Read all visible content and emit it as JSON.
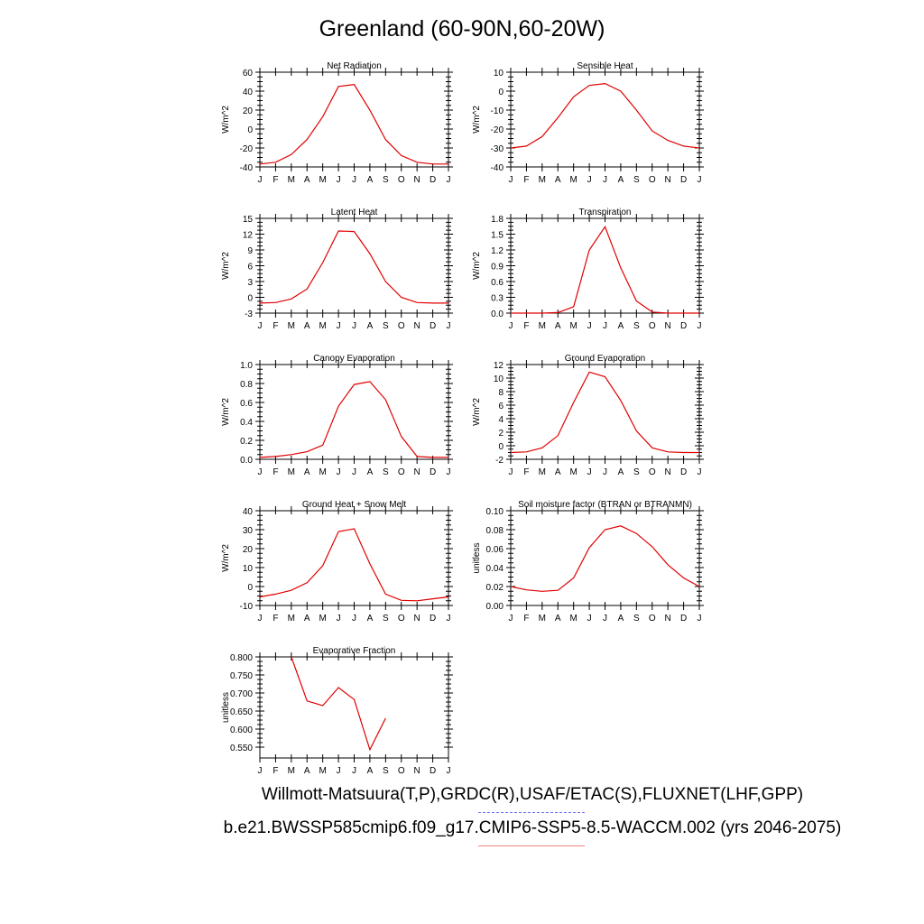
{
  "page": {
    "title": "Greenland (60-90N,60-20W)",
    "obs_legend": "Willmott-Matsuura(T,P),GRDC(R),USAF/ETAC(S),FLUXNET(LHF,GPP)",
    "model_legend": "b.e21.BWSSP585cmip6.f09_g17.CMIP6-SSP5-8.5-WACCM.002 (yrs 2046-2075)",
    "obs_color": "#6a6af0",
    "model_color": "#f08080",
    "line_color": "#e00000"
  },
  "chart_data": [
    {
      "type": "line",
      "title": "Net Radiation",
      "ylabel": "W/m^2",
      "x": [
        "J",
        "F",
        "M",
        "A",
        "M",
        "J",
        "J",
        "A",
        "S",
        "O",
        "N",
        "D",
        "J"
      ],
      "ylim": [
        -40,
        60
      ],
      "yticks": [
        "-40",
        "-20",
        "0",
        "20",
        "40",
        "60"
      ],
      "series": [
        {
          "values": [
            -37,
            -35,
            -27,
            -11,
            13,
            45,
            47,
            20,
            -11,
            -28,
            -35,
            -37,
            -37
          ]
        }
      ]
    },
    {
      "type": "line",
      "title": "Sensible Heat",
      "ylabel": "W/m^2",
      "x": [
        "J",
        "F",
        "M",
        "A",
        "M",
        "J",
        "J",
        "A",
        "S",
        "O",
        "N",
        "D",
        "J"
      ],
      "ylim": [
        -40,
        10
      ],
      "yticks": [
        "-40",
        "-30",
        "-20",
        "-10",
        "0",
        "10"
      ],
      "series": [
        {
          "values": [
            -30,
            -29,
            -24,
            -14,
            -3,
            3,
            4,
            0,
            -10,
            -21,
            -26,
            -29,
            -30
          ]
        }
      ]
    },
    {
      "type": "line",
      "title": "Latent Heat",
      "ylabel": "W/m^2",
      "x": [
        "J",
        "F",
        "M",
        "A",
        "M",
        "J",
        "J",
        "A",
        "S",
        "O",
        "N",
        "D",
        "J"
      ],
      "ylim": [
        -3,
        15
      ],
      "yticks": [
        "-3",
        "0",
        "3",
        "6",
        "9",
        "12",
        "15"
      ],
      "series": [
        {
          "values": [
            -1.1,
            -1.0,
            -0.3,
            1.6,
            6.6,
            12.6,
            12.5,
            8.3,
            3.0,
            0.0,
            -1.0,
            -1.1,
            -1.1
          ]
        }
      ]
    },
    {
      "type": "line",
      "title": "Transpiration",
      "ylabel": "W/m^2",
      "x": [
        "J",
        "F",
        "M",
        "A",
        "M",
        "J",
        "J",
        "A",
        "S",
        "O",
        "N",
        "D",
        "J"
      ],
      "ylim": [
        0,
        1.8
      ],
      "yticks": [
        "0.0",
        "0.3",
        "0.6",
        "0.9",
        "1.2",
        "1.5",
        "1.8"
      ],
      "series": [
        {
          "values": [
            0.0,
            0.0,
            0.0,
            0.01,
            0.12,
            1.2,
            1.64,
            0.86,
            0.23,
            0.02,
            0.0,
            0.0,
            0.0
          ]
        }
      ]
    },
    {
      "type": "line",
      "title": "Canopy Evaporation",
      "ylabel": "W/m^2",
      "x": [
        "J",
        "F",
        "M",
        "A",
        "M",
        "J",
        "J",
        "A",
        "S",
        "O",
        "N",
        "D",
        "J"
      ],
      "ylim": [
        0,
        1.0
      ],
      "yticks": [
        "0.0",
        "0.2",
        "0.4",
        "0.6",
        "0.8",
        "1.0"
      ],
      "series": [
        {
          "values": [
            0.02,
            0.03,
            0.05,
            0.08,
            0.15,
            0.56,
            0.79,
            0.82,
            0.63,
            0.24,
            0.03,
            0.02,
            0.02
          ]
        }
      ]
    },
    {
      "type": "line",
      "title": "Ground Evaporation",
      "ylabel": "W/m^2",
      "x": [
        "J",
        "F",
        "M",
        "A",
        "M",
        "J",
        "J",
        "A",
        "S",
        "O",
        "N",
        "D",
        "J"
      ],
      "ylim": [
        -2,
        12
      ],
      "yticks": [
        "-2",
        "0",
        "2",
        "4",
        "6",
        "8",
        "10",
        "12"
      ],
      "series": [
        {
          "values": [
            -1.0,
            -0.9,
            -0.3,
            1.5,
            6.4,
            10.9,
            10.2,
            6.7,
            2.2,
            -0.3,
            -0.9,
            -1.0,
            -1.0
          ]
        }
      ]
    },
    {
      "type": "line",
      "title": "Ground Heat + Snow Melt",
      "ylabel": "W/m^2",
      "x": [
        "J",
        "F",
        "M",
        "A",
        "M",
        "J",
        "J",
        "A",
        "S",
        "O",
        "N",
        "D",
        "J"
      ],
      "ylim": [
        -10,
        40
      ],
      "yticks": [
        "-10",
        "0",
        "10",
        "20",
        "30",
        "40"
      ],
      "series": [
        {
          "values": [
            -5.5,
            -4,
            -2,
            2,
            11,
            29,
            30.5,
            12,
            -4,
            -7.3,
            -7.5,
            -6.5,
            -5.5
          ]
        }
      ]
    },
    {
      "type": "line",
      "title": "Soil moisture factor (BTRAN or BTRANMN)",
      "ylabel": "unitless",
      "x": [
        "J",
        "F",
        "M",
        "A",
        "M",
        "J",
        "J",
        "A",
        "S",
        "O",
        "N",
        "D",
        "J"
      ],
      "ylim": [
        0,
        0.1
      ],
      "yticks": [
        "0.00",
        "0.02",
        "0.04",
        "0.06",
        "0.08",
        "0.10"
      ],
      "series": [
        {
          "values": [
            0.02,
            0.0165,
            0.015,
            0.016,
            0.029,
            0.061,
            0.08,
            0.084,
            0.076,
            0.062,
            0.043,
            0.029,
            0.02
          ]
        }
      ]
    },
    {
      "type": "line",
      "title": "Evaporative Fraction",
      "ylabel": "unitless",
      "x": [
        "J",
        "F",
        "M",
        "A",
        "M",
        "J",
        "J",
        "A",
        "S",
        "O",
        "N",
        "D",
        "J"
      ],
      "ylim": [
        0.52,
        0.8
      ],
      "yticks": [
        "0.550",
        "0.600",
        "0.650",
        "0.700",
        "0.750",
        "0.800"
      ],
      "series": [
        {
          "values": [
            null,
            null,
            0.8,
            0.678,
            0.665,
            0.715,
            0.682,
            0.543,
            0.63,
            null,
            null,
            null,
            null
          ]
        }
      ]
    }
  ]
}
